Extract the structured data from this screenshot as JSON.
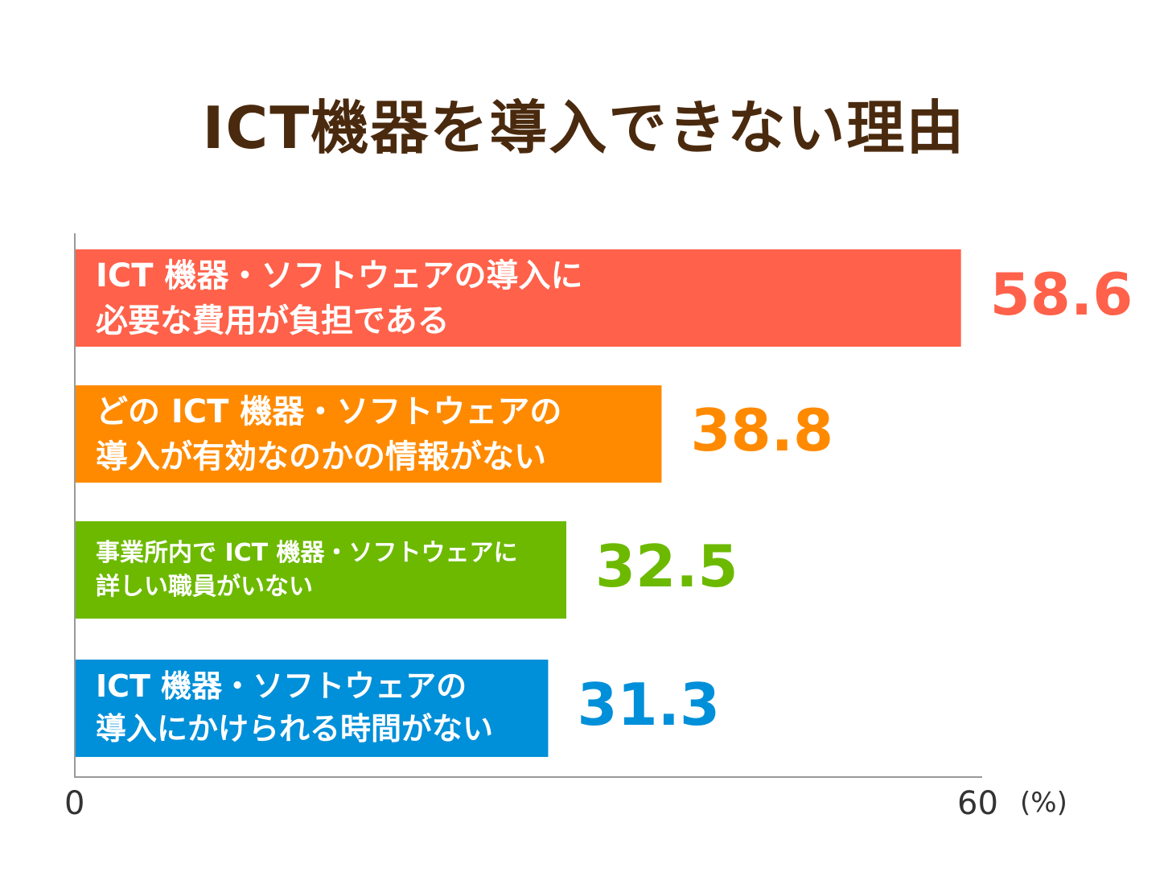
{
  "chart_data": {
    "type": "bar",
    "orientation": "horizontal",
    "title": "ICT機器を導入できない理由",
    "categories": [
      "ICT 機器・ソフトウェアの導入に\n必要な費用が負担である",
      "どの ICT 機器・ソフトウェアの\n導入が有効なのかの情報がない",
      "事業所内で ICT 機器・ソフトウェアに\n詳しい職員がいない",
      "ICT 機器・ソフトウェアの\n導入にかけられる時間がない"
    ],
    "values": [
      58.6,
      38.8,
      32.5,
      31.3
    ],
    "value_labels": [
      "58.6",
      "38.8",
      "32.5",
      "31.3"
    ],
    "colors": [
      "#ff614a",
      "#ff8a00",
      "#6cb900",
      "#008fd9"
    ],
    "xlim": [
      0,
      60
    ],
    "x_ticks": [
      "0",
      "60"
    ],
    "x_unit": "(%)",
    "grid": false,
    "legend": "none"
  }
}
